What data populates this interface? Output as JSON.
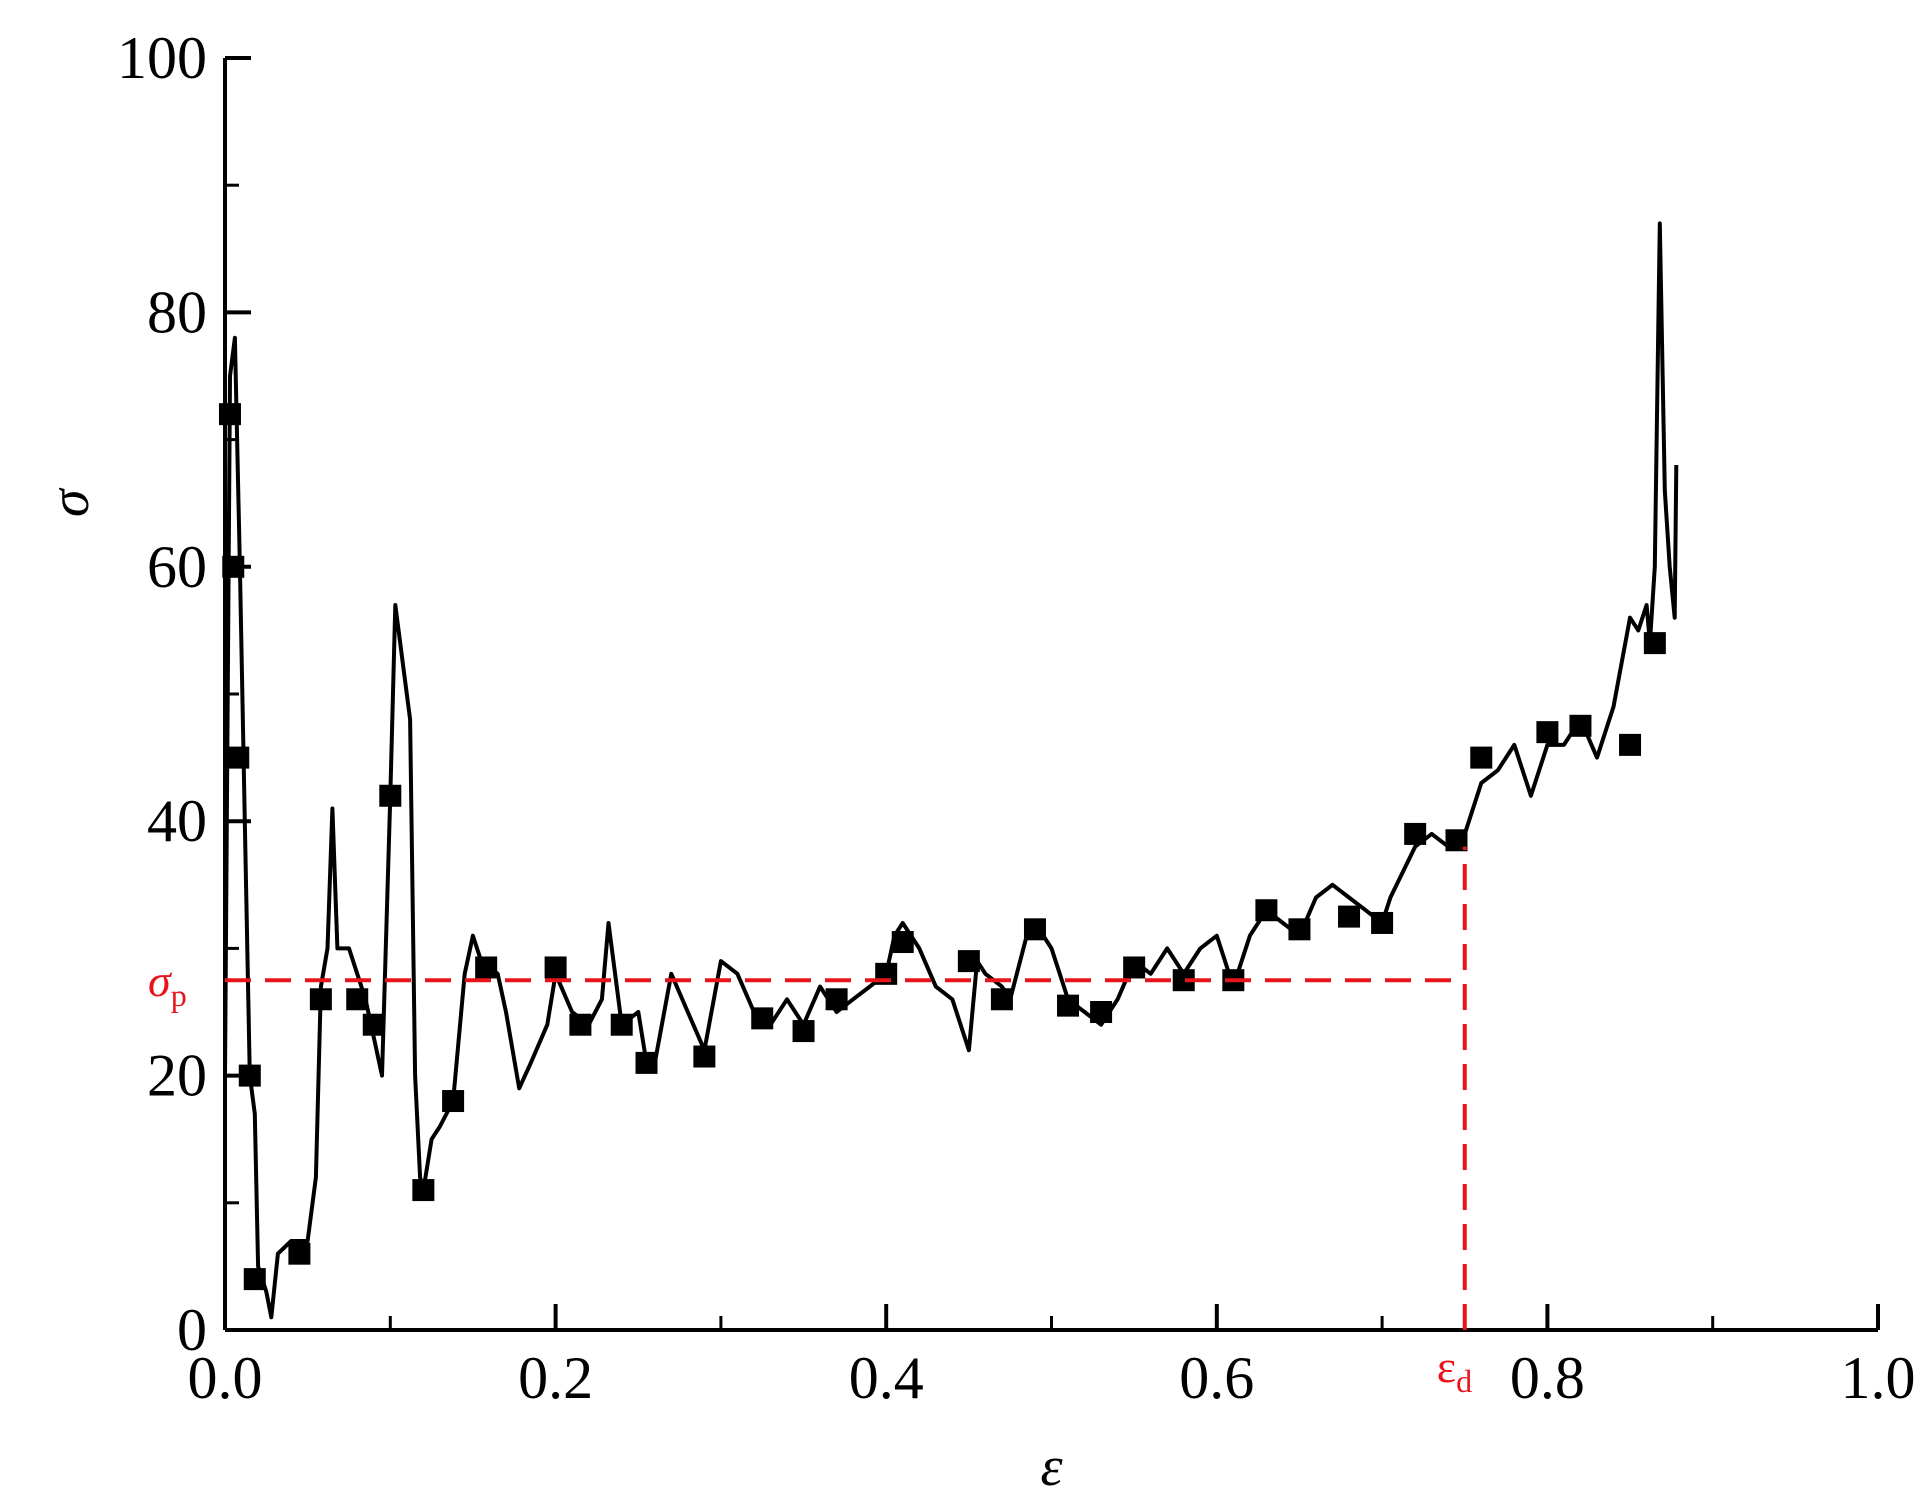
{
  "chart_data": {
    "type": "line",
    "xlabel": "ε",
    "ylabel": "σ",
    "x": [
      0.0,
      0.003,
      0.006,
      0.009,
      0.012,
      0.015,
      0.018,
      0.02,
      0.025,
      0.028,
      0.032,
      0.04,
      0.05,
      0.055,
      0.058,
      0.062,
      0.065,
      0.068,
      0.075,
      0.08,
      0.085,
      0.09,
      0.095,
      0.1,
      0.103,
      0.108,
      0.112,
      0.115,
      0.118,
      0.12,
      0.125,
      0.13,
      0.138,
      0.145,
      0.15,
      0.155,
      0.165,
      0.17,
      0.178,
      0.185,
      0.195,
      0.2,
      0.21,
      0.22,
      0.228,
      0.232,
      0.24,
      0.25,
      0.255,
      0.26,
      0.27,
      0.28,
      0.29,
      0.3,
      0.31,
      0.32,
      0.33,
      0.34,
      0.35,
      0.36,
      0.37,
      0.38,
      0.39,
      0.4,
      0.405,
      0.41,
      0.42,
      0.43,
      0.44,
      0.445,
      0.45,
      0.455,
      0.46,
      0.47,
      0.475,
      0.485,
      0.49,
      0.5,
      0.51,
      0.52,
      0.53,
      0.54,
      0.55,
      0.56,
      0.57,
      0.58,
      0.59,
      0.6,
      0.61,
      0.62,
      0.63,
      0.64,
      0.65,
      0.66,
      0.67,
      0.68,
      0.69,
      0.7,
      0.705,
      0.72,
      0.73,
      0.74,
      0.75,
      0.76,
      0.77,
      0.78,
      0.79,
      0.8,
      0.81,
      0.82,
      0.83,
      0.84,
      0.85,
      0.855,
      0.86,
      0.862,
      0.865,
      0.868,
      0.871,
      0.874,
      0.877,
      0.878
    ],
    "values": [
      20,
      75,
      78,
      60,
      40,
      20,
      17,
      5,
      3,
      1,
      6,
      7,
      7,
      12,
      27,
      30,
      41,
      30,
      30,
      28,
      26,
      23,
      20,
      42,
      57,
      52,
      48,
      20,
      12,
      11,
      15,
      16,
      18,
      28,
      31,
      29,
      28,
      25,
      19,
      21,
      24,
      28,
      25,
      24,
      26,
      32,
      24,
      25,
      21,
      21,
      28,
      25,
      22,
      29,
      28,
      25,
      24,
      26,
      24,
      27,
      25,
      26,
      27,
      28,
      31,
      32,
      30,
      27,
      26,
      24,
      22,
      29,
      28,
      27,
      26,
      31,
      32,
      30,
      26,
      25,
      24,
      26,
      29,
      28,
      30,
      28,
      30,
      31,
      27,
      31,
      33,
      32,
      31,
      34,
      35,
      34,
      33,
      32,
      34,
      38,
      39,
      38,
      39,
      43,
      44,
      46,
      42,
      46,
      46,
      48,
      45,
      49,
      56,
      55,
      57,
      54,
      60,
      87,
      66,
      60,
      56,
      68
    ],
    "color": "#000000",
    "marker": "square",
    "markers": {
      "x": [
        0.003,
        0.005,
        0.008,
        0.015,
        0.018,
        0.045,
        0.058,
        0.08,
        0.09,
        0.1,
        0.12,
        0.138,
        0.158,
        0.2,
        0.215,
        0.24,
        0.255,
        0.29,
        0.325,
        0.35,
        0.37,
        0.4,
        0.41,
        0.45,
        0.47,
        0.49,
        0.51,
        0.53,
        0.55,
        0.58,
        0.61,
        0.63,
        0.65,
        0.68,
        0.7,
        0.72,
        0.745,
        0.76,
        0.8,
        0.82,
        0.85,
        0.865
      ],
      "values": [
        72,
        60,
        45,
        20,
        4,
        6,
        26,
        26,
        24,
        42,
        11,
        18,
        28.5,
        28.5,
        24,
        24,
        21,
        21.5,
        24.5,
        23.5,
        26,
        28,
        30.5,
        29,
        26,
        31.5,
        25.5,
        25,
        28.5,
        27.5,
        27.5,
        33,
        31.5,
        32.5,
        32,
        39,
        38.5,
        45,
        47,
        47.5,
        46,
        54
      ]
    },
    "xlim": [
      0,
      1.0
    ],
    "ylim": [
      0,
      100
    ],
    "xticks": [
      {
        "value": 0,
        "label": "0.0"
      },
      0.2,
      0.4,
      0.6,
      0.8,
      {
        "value": 1,
        "label": "1.0"
      }
    ],
    "xminorticks": [
      0.1,
      0.3,
      0.5,
      0.7,
      0.9
    ],
    "yticks": [
      0,
      20,
      40,
      60,
      80,
      100
    ],
    "yminorticks": [
      10,
      30,
      50,
      70,
      90
    ],
    "annotations": {
      "sigma_p": {
        "label": "σ",
        "subscript": "p",
        "y": 27.5,
        "x_end": 0.75,
        "color": "#e8141b"
      },
      "epsilon_d": {
        "label": "ε",
        "subscript": "d",
        "x": 0.75,
        "y_end": 38,
        "color": "#e8141b"
      }
    }
  }
}
